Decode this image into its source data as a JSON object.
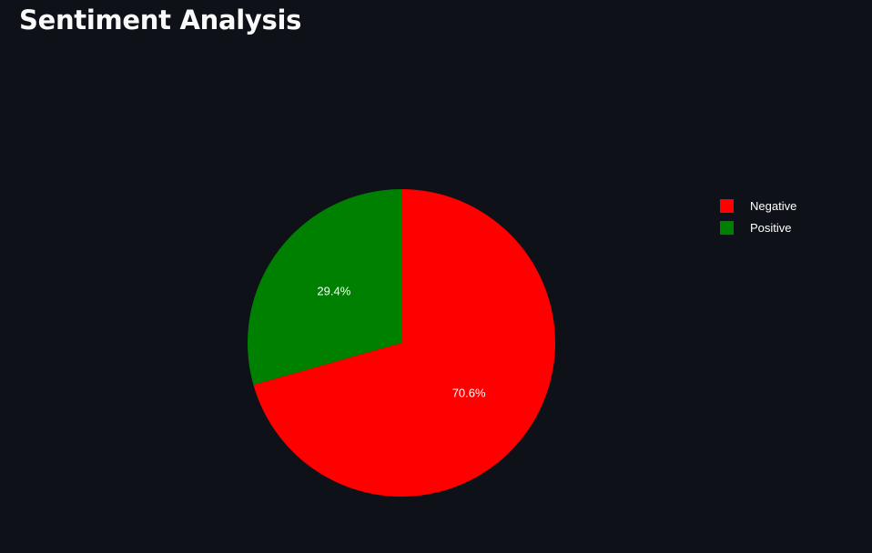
{
  "page": {
    "title": "Sentiment Analysis"
  },
  "chart_data": {
    "type": "pie",
    "title": "",
    "slices": [
      {
        "label": "Negative",
        "value": 70.6,
        "text": "70.6%",
        "color": "#ff0000"
      },
      {
        "label": "Positive",
        "value": 29.4,
        "text": "29.4%",
        "color": "#008000"
      }
    ],
    "direction": "clockwise",
    "start": "top",
    "legend": {
      "position": "right",
      "entries": [
        "Negative",
        "Positive"
      ]
    },
    "background": "#0e1117",
    "text_color": "#ffffff"
  }
}
